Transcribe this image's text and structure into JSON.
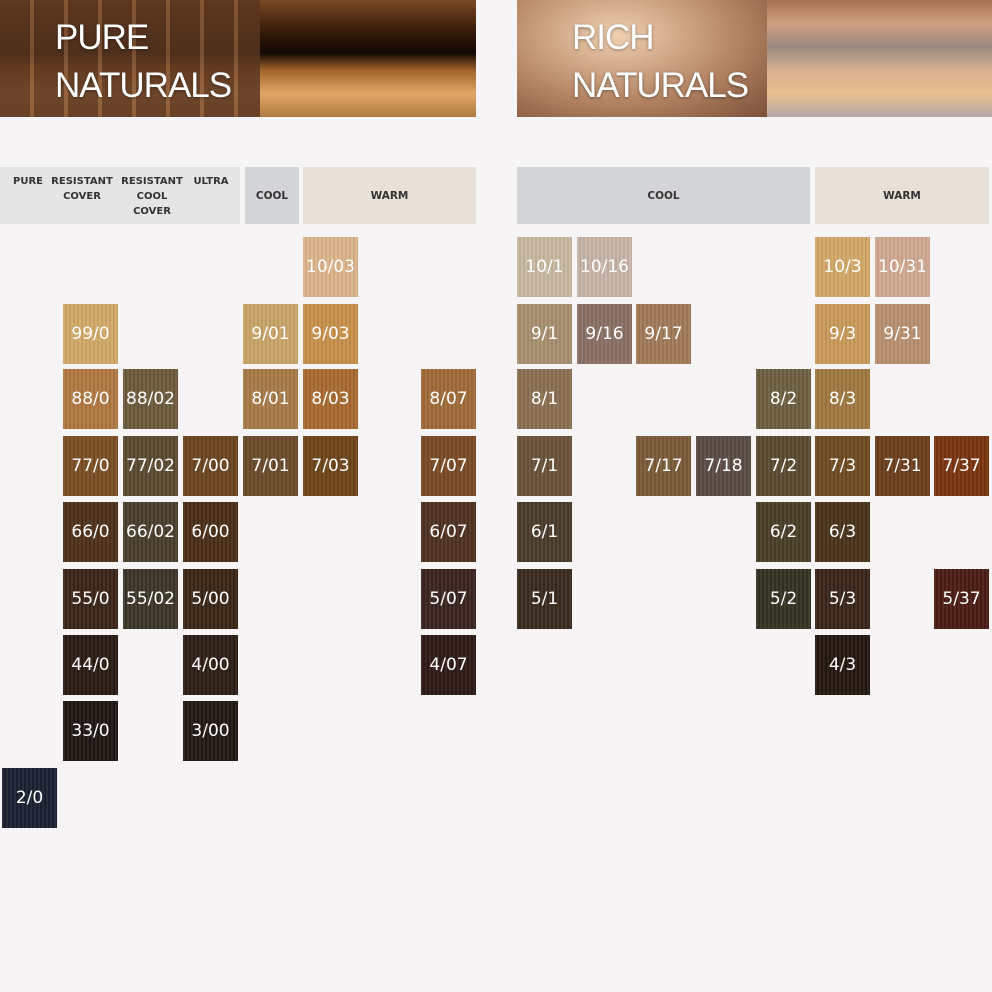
{
  "pure_naturals": {
    "title_line1": "PURE",
    "title_line2": "NATURALS",
    "headers": {
      "pure": "PURE",
      "resistant_cover": "RESISTANT COVER",
      "resistant_cool_cover": "RESISTANT COOL COVER",
      "ultra": "ULTRA",
      "cool": "COOL",
      "warm": "WARM"
    },
    "rows": [
      [
        null,
        null,
        null,
        null,
        null,
        {
          "code": "10/03",
          "color": "#dcb48a"
        },
        null,
        null
      ],
      [
        null,
        {
          "code": "99/0",
          "color": "#d2a868"
        },
        null,
        null,
        {
          "code": "9/01",
          "color": "#c9a468"
        },
        {
          "code": "9/03",
          "color": "#c8904a"
        },
        null,
        null
      ],
      [
        null,
        {
          "code": "88/0",
          "color": "#b07840"
        },
        {
          "code": "88/02",
          "color": "#6e5a3c"
        },
        null,
        {
          "code": "8/01",
          "color": "#a87a48"
        },
        {
          "code": "8/03",
          "color": "#a86a30"
        },
        null,
        {
          "code": "8/07",
          "color": "#a06a38"
        }
      ],
      [
        null,
        {
          "code": "77/0",
          "color": "#7a4e24"
        },
        {
          "code": "77/02",
          "color": "#5a4a30"
        },
        {
          "code": "7/00",
          "color": "#6a4420"
        },
        {
          "code": "7/01",
          "color": "#6a4a28"
        },
        {
          "code": "7/03",
          "color": "#6e4418"
        },
        null,
        {
          "code": "7/07",
          "color": "#7a4a24"
        }
      ],
      [
        null,
        {
          "code": "66/0",
          "color": "#4e3018"
        },
        {
          "code": "66/02",
          "color": "#4a3e2c"
        },
        {
          "code": "6/00",
          "color": "#4a2e16"
        },
        null,
        null,
        null,
        {
          "code": "6/07",
          "color": "#4e3020"
        }
      ],
      [
        null,
        {
          "code": "55/0",
          "color": "#3a2416"
        },
        {
          "code": "55/02",
          "color": "#3c3628"
        },
        {
          "code": "5/00",
          "color": "#3a2616"
        },
        null,
        null,
        null,
        {
          "code": "5/07",
          "color": "#3a2420"
        }
      ],
      [
        null,
        {
          "code": "44/0",
          "color": "#2a1a12"
        },
        null,
        {
          "code": "4/00",
          "color": "#2e1e14"
        },
        null,
        null,
        null,
        {
          "code": "4/07",
          "color": "#2e1a16"
        }
      ],
      [
        null,
        {
          "code": "33/0",
          "color": "#1e1612"
        },
        null,
        {
          "code": "3/00",
          "color": "#201812"
        },
        null,
        null,
        null,
        null
      ],
      [
        {
          "code": "2/0",
          "color": "#1a2030"
        },
        null,
        null,
        null,
        null,
        null,
        null,
        null
      ]
    ]
  },
  "rich_naturals": {
    "title_line1": "RICH",
    "title_line2": "NATURALS",
    "headers": {
      "cool": "COOL",
      "warm": "WARM"
    },
    "rows": [
      [
        {
          "code": "10/1",
          "color": "#c8b8a0"
        },
        {
          "code": "10/16",
          "color": "#c8b4a8"
        },
        null,
        null,
        null,
        {
          "code": "10/3",
          "color": "#d4a868"
        },
        {
          "code": "10/31",
          "color": "#d0a890"
        },
        null
      ],
      [
        {
          "code": "9/1",
          "color": "#a89070"
        },
        {
          "code": "9/16",
          "color": "#8a7064"
        },
        {
          "code": "9/17",
          "color": "#a07a58"
        },
        null,
        null,
        {
          "code": "9/3",
          "color": "#c89a58"
        },
        {
          "code": "9/31",
          "color": "#b89070"
        },
        null
      ],
      [
        {
          "code": "8/1",
          "color": "#8a7050"
        },
        null,
        null,
        null,
        {
          "code": "8/2",
          "color": "#6e6040"
        },
        {
          "code": "8/3",
          "color": "#a07840"
        },
        null,
        null
      ],
      [
        {
          "code": "7/1",
          "color": "#6a5238"
        },
        null,
        {
          "code": "7/17",
          "color": "#7a5a38"
        },
        {
          "code": "7/18",
          "color": "#5a4c44"
        },
        {
          "code": "7/2",
          "color": "#5a4a30"
        },
        {
          "code": "7/3",
          "color": "#6e4a20"
        },
        {
          "code": "7/31",
          "color": "#6a3e1c"
        },
        {
          "code": "7/37",
          "color": "#7a3410"
        }
      ],
      [
        {
          "code": "6/1",
          "color": "#4a3a2a"
        },
        null,
        null,
        null,
        {
          "code": "6/2",
          "color": "#4a3e26"
        },
        {
          "code": "6/3",
          "color": "#4a3218"
        },
        null,
        null
      ],
      [
        {
          "code": "5/1",
          "color": "#3a2a1e"
        },
        null,
        null,
        null,
        {
          "code": "5/2",
          "color": "#343222"
        },
        {
          "code": "5/3",
          "color": "#3a2418"
        },
        null,
        {
          "code": "5/37",
          "color": "#4a1c12"
        }
      ],
      [
        null,
        null,
        null,
        null,
        null,
        {
          "code": "4/3",
          "color": "#24160e"
        },
        null,
        null
      ]
    ]
  }
}
